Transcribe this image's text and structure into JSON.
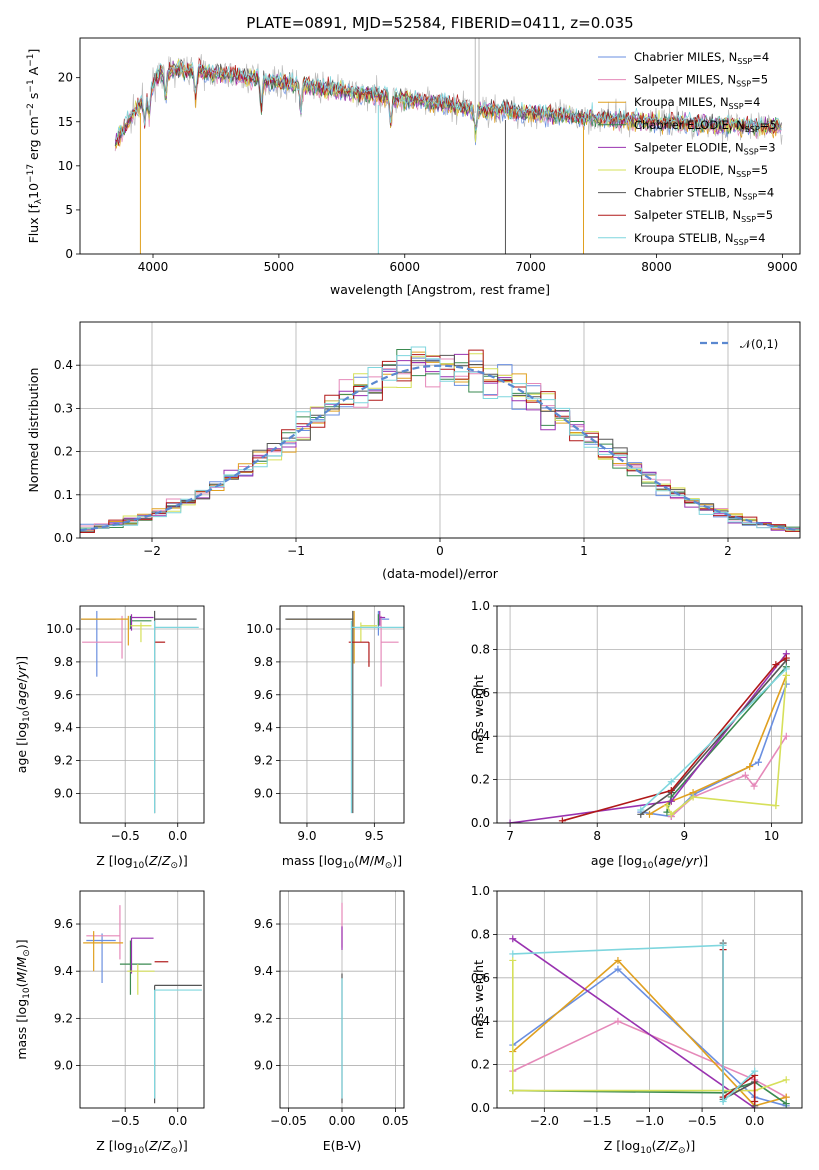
{
  "figure": {
    "title": "PLATE=0891, MJD=52584, FIBERID=0411, z=0.035"
  },
  "models": [
    {
      "name": "Chabrier MILES",
      "nssp": "4",
      "color": "#6a8fe0"
    },
    {
      "name": "Salpeter MILES",
      "nssp": "5",
      "color": "#e589b9"
    },
    {
      "name": "Kroupa MILES",
      "nssp": "4",
      "color": "#e0a020"
    },
    {
      "name": "Chabrier ELODIE",
      "nssp": "5",
      "color": "#3a8a50"
    },
    {
      "name": "Salpeter ELODIE",
      "nssp": "3",
      "color": "#9932b0"
    },
    {
      "name": "Kroupa ELODIE",
      "nssp": "5",
      "color": "#d6e05a"
    },
    {
      "name": "Chabrier STELIB",
      "nssp": "4",
      "color": "#555555"
    },
    {
      "name": "Salpeter STELIB",
      "nssp": "5",
      "color": "#b01818"
    },
    {
      "name": "Kroupa STELIB",
      "nssp": "4",
      "color": "#7fd6de"
    }
  ],
  "chart_data": [
    {
      "id": "spectrum",
      "type": "line",
      "title": "PLATE=0891, MJD=52584, FIBERID=0411, z=0.035",
      "xlabel": "wavelength [Angstrom, rest frame]",
      "ylabel": "Flux [f_λ 10^-17 erg cm^-2 s^-1 A^-1]",
      "xlim": [
        3420,
        9140
      ],
      "ylim": [
        0,
        24.5
      ],
      "xticks": [
        4000,
        5000,
        6000,
        7000,
        8000,
        9000
      ],
      "yticks": [
        0,
        5,
        10,
        15,
        20
      ],
      "legend": "top-right",
      "continuum": {
        "x": [
          3700,
          3800,
          3950,
          4050,
          4200,
          4500,
          5000,
          5500,
          6000,
          6300,
          6500,
          6700,
          7000,
          7300,
          7500,
          8000,
          8500,
          9000
        ],
        "y": [
          12.5,
          15,
          18,
          20.5,
          21,
          20.5,
          19.5,
          18.5,
          17.5,
          17,
          16.5,
          16.3,
          16,
          15.6,
          15.4,
          15,
          14.6,
          14.4
        ]
      },
      "data_spectrum": {
        "name": "observed",
        "color": "#bbbbbb"
      },
      "model_dropouts": [
        {
          "model": "Kroupa MILES",
          "x": 3900,
          "to": 0
        },
        {
          "model": "Kroupa STELIB",
          "x": 5790,
          "to": 0
        },
        {
          "model": "Chabrier STELIB",
          "x": 6800,
          "to": 0
        },
        {
          "model": "Kroupa MILES",
          "x": 7420,
          "to": 0
        }
      ]
    },
    {
      "id": "residuals",
      "type": "histogram",
      "xlabel": "(data-model)/error",
      "ylabel": "Normed distribution",
      "xlim": [
        -2.5,
        2.5
      ],
      "ylim": [
        0,
        0.5
      ],
      "xticks": [
        -2,
        -1,
        0,
        1,
        2
      ],
      "yticks": [
        0,
        0.1,
        0.2,
        0.3,
        0.4
      ],
      "bin_width": 0.1,
      "reference": {
        "name": "𝒩(0,1)",
        "color": "#5a88d0",
        "style": "dashed"
      },
      "legend": "top-right"
    },
    {
      "id": "age-vs-Z",
      "type": "errorbar",
      "xlabel": "Z [log10(Z/Z☉)]",
      "ylabel": "age [log10(age/yr)]",
      "xlim": [
        -0.93,
        0.25
      ],
      "ylim": [
        8.82,
        10.14
      ],
      "xticks": [
        -0.5,
        0.0
      ],
      "yticks": [
        9.0,
        9.2,
        9.4,
        9.6,
        9.8,
        10.0
      ],
      "points": [
        {
          "model": "Chabrier MILES",
          "x": -0.77,
          "y": 10.06,
          "xerr": [
            0.15,
            0.18
          ],
          "yerr": [
            0.35,
            0.05
          ]
        },
        {
          "model": "Salpeter MILES",
          "x": -0.53,
          "y": 9.92,
          "xerr": [
            0.38,
            0.0
          ],
          "yerr": [
            0.1,
            0.16
          ]
        },
        {
          "model": "Kroupa MILES",
          "x": -0.47,
          "y": 10.06,
          "xerr": [
            0.45,
            0.0
          ],
          "yerr": [
            0.16,
            0.02
          ]
        },
        {
          "model": "Chabrier ELODIE",
          "x": -0.45,
          "y": 10.05,
          "xerr": [
            0.0,
            0.2
          ],
          "yerr": [
            0.05,
            0.03
          ]
        },
        {
          "model": "Salpeter ELODIE",
          "x": -0.44,
          "y": 10.07,
          "xerr": [
            0.0,
            0.21
          ],
          "yerr": [
            0.08,
            0.02
          ]
        },
        {
          "model": "Kroupa ELODIE",
          "x": -0.35,
          "y": 10.02,
          "xerr": [
            0.1,
            0.1
          ],
          "yerr": [
            0.1,
            0.02
          ]
        },
        {
          "model": "Chabrier STELIB",
          "x": -0.22,
          "y": 10.06,
          "xerr": [
            0.0,
            0.4
          ],
          "yerr": [
            1.18,
            0.05
          ]
        },
        {
          "model": "Salpeter STELIB",
          "x": -0.22,
          "y": 9.92,
          "xerr": [
            0.0,
            0.1
          ],
          "yerr": [
            0.0,
            0.0
          ]
        },
        {
          "model": "Kroupa STELIB",
          "x": -0.22,
          "y": 10.01,
          "xerr": [
            0.0,
            0.42
          ],
          "yerr": [
            1.13,
            0.04
          ]
        }
      ]
    },
    {
      "id": "age-vs-mass",
      "type": "errorbar",
      "xlabel": "mass [log10(M/M☉)]",
      "xlim": [
        8.8,
        9.72
      ],
      "ylim": [
        8.82,
        10.14
      ],
      "xticks": [
        9.0,
        9.5
      ],
      "yticks": [
        9.0,
        9.2,
        9.4,
        9.6,
        9.8,
        10.0
      ],
      "points": [
        {
          "model": "Chabrier MILES",
          "x": 9.53,
          "y": 10.06,
          "xerr": [
            0.0,
            0.08
          ],
          "yerr": [
            0.1,
            0.05
          ]
        },
        {
          "model": "Salpeter MILES",
          "x": 9.55,
          "y": 9.92,
          "xerr": [
            0.0,
            0.13
          ],
          "yerr": [
            0.27,
            0.16
          ]
        },
        {
          "model": "Kroupa MILES",
          "x": 9.35,
          "y": 10.06,
          "xerr": [
            0.5,
            0.0
          ],
          "yerr": [
            0.27,
            0.05
          ]
        },
        {
          "model": "Chabrier ELODIE",
          "x": 9.53,
          "y": 10.07,
          "xerr": [
            0.0,
            0.0
          ],
          "yerr": [
            0.05,
            0.02
          ]
        },
        {
          "model": "Salpeter ELODIE",
          "x": 9.54,
          "y": 10.07,
          "xerr": [
            0.0,
            0.04
          ],
          "yerr": [
            0.05,
            0.04
          ]
        },
        {
          "model": "Kroupa ELODIE",
          "x": 9.4,
          "y": 10.02,
          "xerr": [
            0.0,
            0.12
          ],
          "yerr": [
            0.1,
            0.02
          ]
        },
        {
          "model": "Chabrier STELIB",
          "x": 9.34,
          "y": 10.06,
          "xerr": [
            0.5,
            0.0
          ],
          "yerr": [
            1.18,
            0.05
          ]
        },
        {
          "model": "Salpeter STELIB",
          "x": 9.46,
          "y": 9.92,
          "xerr": [
            0.15,
            0.0
          ],
          "yerr": [
            0.15,
            0.0
          ]
        },
        {
          "model": "Kroupa STELIB",
          "x": 9.33,
          "y": 10.01,
          "xerr": [
            0.0,
            0.4
          ],
          "yerr": [
            1.13,
            0.04
          ]
        }
      ]
    },
    {
      "id": "weight-vs-age",
      "type": "line",
      "xlabel": "age [log10(age/yr)]",
      "ylabel": "mass weight",
      "xlim": [
        6.85,
        10.35
      ],
      "ylim": [
        0,
        1
      ],
      "xticks": [
        7,
        8,
        9,
        10
      ],
      "yticks": [
        0.0,
        0.2,
        0.4,
        0.6,
        0.8,
        1.0
      ],
      "series": [
        {
          "model": "Chabrier MILES",
          "x": [
            8.5,
            8.85,
            9.1,
            9.85,
            10.17
          ],
          "y": [
            0.05,
            0.03,
            0.13,
            0.28,
            0.64
          ]
        },
        {
          "model": "Salpeter MILES",
          "x": [
            8.85,
            9.1,
            9.7,
            9.8,
            10.17
          ],
          "y": [
            0.03,
            0.12,
            0.22,
            0.17,
            0.4
          ]
        },
        {
          "model": "Kroupa MILES",
          "x": [
            8.6,
            8.85,
            9.1,
            9.75,
            10.17
          ],
          "y": [
            0.04,
            0.1,
            0.14,
            0.26,
            0.68
          ]
        },
        {
          "model": "Chabrier ELODIE",
          "x": [
            8.8,
            8.85,
            10.17
          ],
          "y": [
            0.05,
            0.12,
            0.72
          ]
        },
        {
          "model": "Salpeter ELODIE",
          "x": [
            7.0,
            8.85,
            10.17
          ],
          "y": [
            0.0,
            0.1,
            0.78
          ]
        },
        {
          "model": "Kroupa ELODIE",
          "x": [
            8.8,
            8.85,
            9.1,
            10.05,
            10.17
          ],
          "y": [
            0.08,
            0.04,
            0.12,
            0.08,
            0.68
          ]
        },
        {
          "model": "Chabrier STELIB",
          "x": [
            8.5,
            8.85,
            10.17
          ],
          "y": [
            0.04,
            0.14,
            0.75
          ]
        },
        {
          "model": "Salpeter STELIB",
          "x": [
            7.6,
            8.85,
            10.05,
            10.17
          ],
          "y": [
            0.01,
            0.15,
            0.73,
            0.76
          ]
        },
        {
          "model": "Kroupa STELIB",
          "x": [
            8.5,
            8.85,
            10.17
          ],
          "y": [
            0.06,
            0.19,
            0.71
          ]
        }
      ]
    },
    {
      "id": "mass-vs-Z",
      "type": "errorbar",
      "xlabel": "Z [log10(Z/Z☉)]",
      "ylabel": "mass [log10(M/M☉)]",
      "xlim": [
        -0.93,
        0.25
      ],
      "ylim": [
        8.82,
        9.74
      ],
      "xticks": [
        -0.5,
        0.0
      ],
      "yticks": [
        9.0,
        9.2,
        9.4,
        9.6
      ],
      "points": [
        {
          "model": "Chabrier MILES",
          "x": -0.72,
          "y": 9.53,
          "xerr": [
            0.15,
            0.13
          ],
          "yerr": [
            0.18,
            0.03
          ]
        },
        {
          "model": "Salpeter MILES",
          "x": -0.55,
          "y": 9.55,
          "xerr": [
            0.32,
            0.0
          ],
          "yerr": [
            0.1,
            0.13
          ]
        },
        {
          "model": "Kroupa MILES",
          "x": -0.8,
          "y": 9.52,
          "xerr": [
            0.1,
            0.28
          ],
          "yerr": [
            0.12,
            0.05
          ]
        },
        {
          "model": "Chabrier ELODIE",
          "x": -0.45,
          "y": 9.43,
          "xerr": [
            0.1,
            0.2
          ],
          "yerr": [
            0.13,
            0.1
          ]
        },
        {
          "model": "Salpeter ELODIE",
          "x": -0.44,
          "y": 9.54,
          "xerr": [
            0.0,
            0.21
          ],
          "yerr": [
            0.15,
            0.0
          ]
        },
        {
          "model": "Kroupa ELODIE",
          "x": -0.38,
          "y": 9.4,
          "xerr": [
            0.1,
            0.16
          ],
          "yerr": [
            0.1,
            0.03
          ]
        },
        {
          "model": "Chabrier STELIB",
          "x": -0.22,
          "y": 9.34,
          "xerr": [
            0.0,
            0.45
          ],
          "yerr": [
            0.5,
            0.0
          ]
        },
        {
          "model": "Salpeter STELIB",
          "x": -0.22,
          "y": 9.44,
          "xerr": [
            0.0,
            0.13
          ],
          "yerr": [
            0.0,
            0.0
          ]
        },
        {
          "model": "Kroupa STELIB",
          "x": -0.22,
          "y": 9.32,
          "xerr": [
            0.0,
            0.45
          ],
          "yerr": [
            0.46,
            0.0
          ]
        }
      ]
    },
    {
      "id": "mass-vs-EBV",
      "type": "errorbar",
      "xlabel": "E(B-V)",
      "xlim": [
        -0.058,
        0.058
      ],
      "ylim": [
        8.82,
        9.74
      ],
      "xticks": [
        -0.05,
        0.0,
        0.05
      ],
      "yticks": [
        9.0,
        9.2,
        9.4,
        9.6
      ],
      "points": [
        {
          "model": "Salpeter MILES",
          "x": 0.0,
          "y": 9.55,
          "xerr": [
            0,
            0
          ],
          "yerr": [
            0.05,
            0.14
          ]
        },
        {
          "model": "Salpeter ELODIE",
          "x": 0.0,
          "y": 9.54,
          "xerr": [
            0,
            0
          ],
          "yerr": [
            0.05,
            0.05
          ]
        },
        {
          "model": "Chabrier STELIB",
          "x": 0.0,
          "y": 9.34,
          "xerr": [
            0,
            0
          ],
          "yerr": [
            0.5,
            0.05
          ]
        },
        {
          "model": "Kroupa STELIB",
          "x": 0.0,
          "y": 9.32,
          "xerr": [
            0,
            0
          ],
          "yerr": [
            0.46,
            0.05
          ]
        }
      ]
    },
    {
      "id": "weight-vs-Z",
      "type": "line",
      "xlabel": "Z [log10(Z/Z☉)]",
      "ylabel": "mass weight",
      "xlim": [
        -2.45,
        0.45
      ],
      "ylim": [
        0,
        1
      ],
      "xticks": [
        -2.0,
        -1.5,
        -1.0,
        -0.5,
        0.0
      ],
      "yticks": [
        0.0,
        0.2,
        0.4,
        0.6,
        0.8,
        1.0
      ],
      "series": [
        {
          "model": "Chabrier MILES",
          "x": [
            -2.3,
            -1.3,
            0.0,
            0.3
          ],
          "y": [
            0.29,
            0.64,
            0.05,
            0.01
          ]
        },
        {
          "model": "Salpeter MILES",
          "x": [
            -2.3,
            -1.3,
            0.0,
            0.3
          ],
          "y": [
            0.17,
            0.4,
            0.13,
            0.05
          ]
        },
        {
          "model": "Kroupa MILES",
          "x": [
            -2.3,
            -1.3,
            0.0,
            0.3
          ],
          "y": [
            0.26,
            0.68,
            0.01,
            0.05
          ]
        },
        {
          "model": "Chabrier ELODIE",
          "x": [
            -2.3,
            -0.3,
            0.0,
            0.3
          ],
          "y": [
            0.08,
            0.07,
            0.12,
            0.02
          ]
        },
        {
          "model": "Salpeter ELODIE",
          "x": [
            -2.3,
            0.0
          ],
          "y": [
            0.78,
            0.0
          ]
        },
        {
          "model": "Kroupa ELODIE",
          "x": [
            -2.3,
            -2.3,
            0.0,
            0.3
          ],
          "y": [
            0.68,
            0.08,
            0.08,
            0.13
          ]
        },
        {
          "model": "Chabrier STELIB",
          "x": [
            -0.3,
            -0.3,
            0.0,
            0.0
          ],
          "y": [
            0.76,
            0.04,
            0.12,
            0.01
          ]
        },
        {
          "model": "Salpeter STELIB",
          "x": [
            -0.3,
            -0.3,
            0.0,
            0.0
          ],
          "y": [
            0.73,
            0.05,
            0.15,
            0.03
          ]
        },
        {
          "model": "Kroupa STELIB",
          "x": [
            -2.3,
            -0.3,
            -0.3,
            0.0
          ],
          "y": [
            0.71,
            0.75,
            0.03,
            0.17
          ]
        }
      ]
    }
  ]
}
